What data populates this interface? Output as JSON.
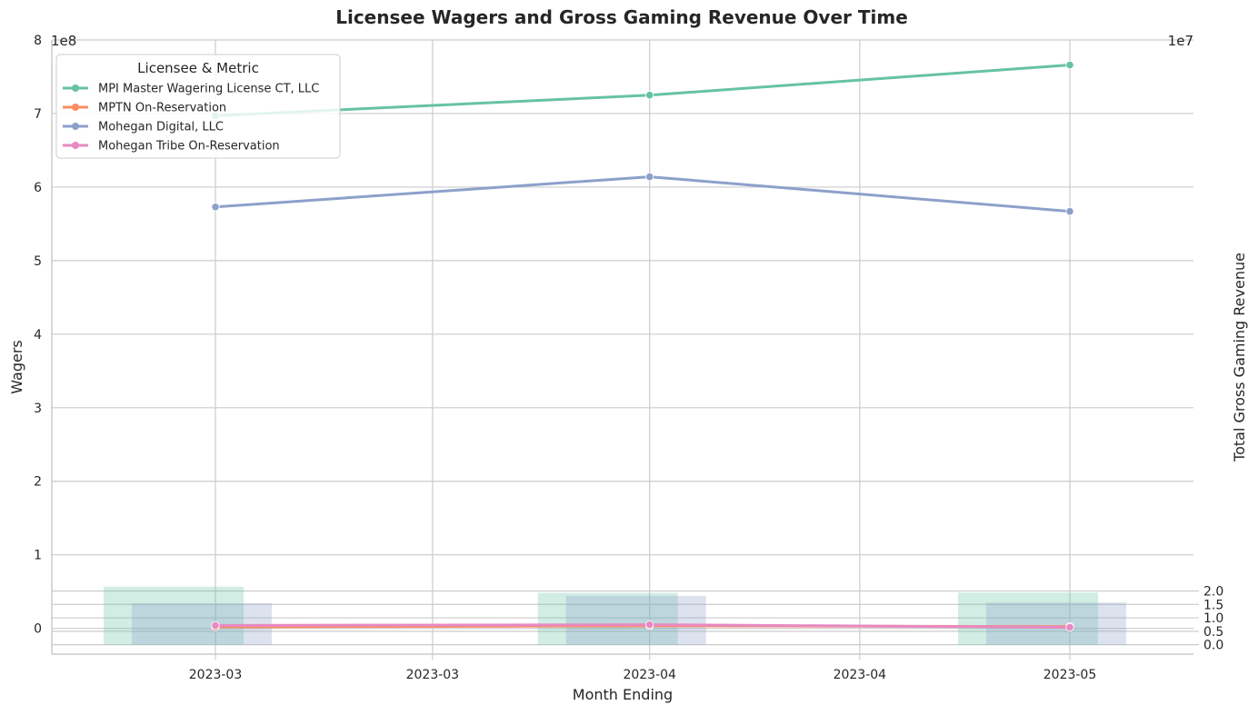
{
  "chart_data": {
    "type": "line",
    "title": "Licensee Wagers and Gross Gaming Revenue Over Time",
    "xlabel": "Month Ending",
    "ylabel": "Wagers",
    "ylabel_right": "Total Gross Gaming Revenue",
    "y_multiplier": "1e8",
    "y2_multiplier": "1e7",
    "ylim": [
      -0.35,
      8.0
    ],
    "y2lim": [
      -0.35,
      22.5
    ],
    "yticks": [
      "0",
      "1",
      "2",
      "3",
      "4",
      "5",
      "6",
      "7",
      "8"
    ],
    "y2ticks": [
      "0.0",
      "0.5",
      "1.0",
      "1.5",
      "2.0"
    ],
    "xticks": [
      "2023-03",
      "2023-03",
      "2023-04",
      "2023-04",
      "2023-05"
    ],
    "x_dates": [
      "2023-02-28",
      "2023-03-31",
      "2023-04-30"
    ],
    "grid": true,
    "legend_title": "Licensee & Metric",
    "legend_position": "top-left",
    "series": [
      {
        "name": "MPI Master Wagering License CT, LLC",
        "color": "#66c2a5",
        "values": [
          697000000,
          725000000,
          766000000
        ]
      },
      {
        "name": "MPTN On-Reservation",
        "color": "#fc8d62",
        "values": [
          2000000,
          3500000,
          2500000
        ]
      },
      {
        "name": "Mohegan Digital, LLC",
        "color": "#8da0cb",
        "values": [
          573000000,
          614000000,
          567000000
        ]
      },
      {
        "name": "Mohegan Tribe On-Reservation",
        "color": "#e78ac3",
        "values": [
          4000000,
          5000000,
          1500000
        ]
      }
    ],
    "bars": [
      {
        "series": "MPI Master Wagering License CT, LLC",
        "color": "#66c2a5",
        "values": [
          21600000,
          19300000,
          19400000
        ]
      },
      {
        "series": "Mohegan Digital, LLC",
        "color": "#8da0cb",
        "values": [
          15400000,
          18200000,
          15700000
        ]
      }
    ]
  }
}
